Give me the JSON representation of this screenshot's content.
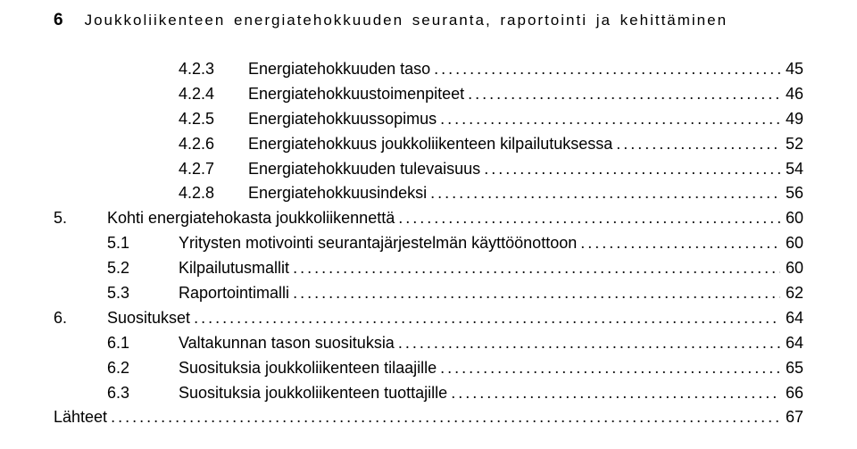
{
  "header": {
    "page_number": "6",
    "title": "Joukkoliikenteen energiatehokkuuden seuranta, raportointi ja kehittäminen"
  },
  "toc": [
    {
      "indent": 2,
      "num": "4.2.3",
      "label": "Energiatehokkuuden taso",
      "page": "45"
    },
    {
      "indent": 2,
      "num": "4.2.4",
      "label": "Energiatehokkuustoimenpiteet",
      "page": "46"
    },
    {
      "indent": 2,
      "num": "4.2.5",
      "label": "Energiatehokkuussopimus",
      "page": "49"
    },
    {
      "indent": 2,
      "num": "4.2.6",
      "label": "Energiatehokkuus joukkoliikenteen kilpailutuksessa",
      "page": "52"
    },
    {
      "indent": 2,
      "num": "4.2.7",
      "label": "Energiatehokkuuden tulevaisuus",
      "page": "54"
    },
    {
      "indent": 2,
      "num": "4.2.8",
      "label": "Energiatehokkuusindeksi",
      "page": "56"
    },
    {
      "indent": 0,
      "num": "5.",
      "label": "Kohti energiatehokasta joukkoliikennettä",
      "page": "60"
    },
    {
      "indent": 1,
      "num": "5.1",
      "label": "Yritysten motivointi seurantajärjestelmän käyttöönottoon",
      "page": "60"
    },
    {
      "indent": 1,
      "num": "5.2",
      "label": "Kilpailutusmallit",
      "page": "60"
    },
    {
      "indent": 1,
      "num": "5.3",
      "label": "Raportointimalli",
      "page": "62"
    },
    {
      "indent": 0,
      "num": "6.",
      "label": "Suositukset",
      "page": "64"
    },
    {
      "indent": 1,
      "num": "6.1",
      "label": "Valtakunnan tason suosituksia",
      "page": "64"
    },
    {
      "indent": 1,
      "num": "6.2",
      "label": "Suosituksia joukkoliikenteen tilaajille",
      "page": "65"
    },
    {
      "indent": 1,
      "num": "6.3",
      "label": "Suosituksia joukkoliikenteen tuottajille",
      "page": "66"
    },
    {
      "indent": 0,
      "num": "",
      "label": "Lähteet",
      "page": "67"
    }
  ]
}
